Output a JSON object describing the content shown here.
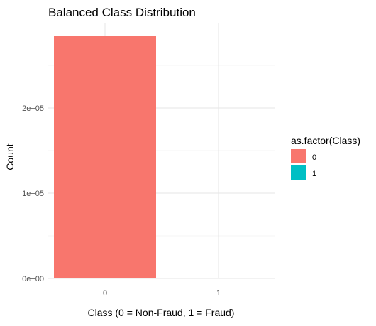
{
  "chart_data": {
    "type": "bar",
    "title": "Balanced Class Distribution",
    "xlabel": "Class (0 = Non-Fraud, 1 = Fraud)",
    "ylabel": "Count",
    "categories": [
      "0",
      "1"
    ],
    "values": [
      284315,
      492
    ],
    "ylim": [
      0,
      300000
    ],
    "y_ticks": [
      0,
      100000,
      200000
    ],
    "y_tick_labels": [
      "0e+00",
      "1e+05",
      "2e+05"
    ],
    "colors": [
      "#F8766D",
      "#00BFC4"
    ],
    "grid": true,
    "legend": {
      "title": "as.factor(Class)",
      "position": "right",
      "entries": [
        "0",
        "1"
      ]
    }
  }
}
